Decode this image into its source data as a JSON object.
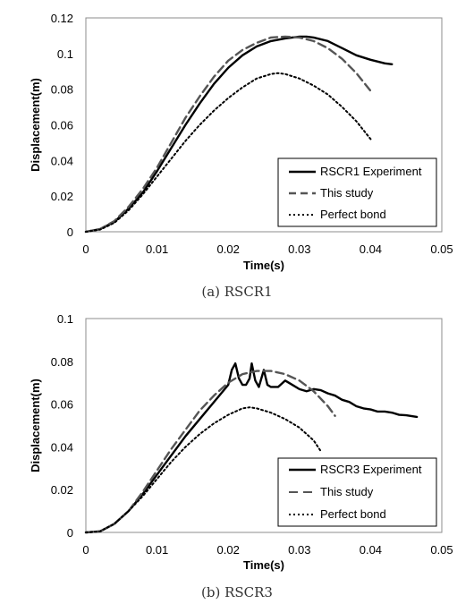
{
  "chart_data": [
    {
      "type": "line",
      "caption": "(a)  RSCR1",
      "xlabel": "Time(s)",
      "ylabel": "Displacement(m)",
      "xlim": [
        0,
        0.05
      ],
      "ylim": [
        0,
        0.12
      ],
      "xticks": [
        "0",
        "0.01",
        "0.02",
        "0.03",
        "0.04",
        "0.05"
      ],
      "yticks": [
        "0",
        "0.02",
        "0.04",
        "0.06",
        "0.08",
        "0.1",
        "0.12"
      ],
      "grid": false,
      "legend_position": "bottom-right",
      "series": [
        {
          "name": "RSCR1 Experiment",
          "style": "solid",
          "color": "#000000",
          "points": [
            [
              0,
              0
            ],
            [
              0.002,
              0.0015
            ],
            [
              0.004,
              0.0055
            ],
            [
              0.006,
              0.013
            ],
            [
              0.008,
              0.022
            ],
            [
              0.01,
              0.034
            ],
            [
              0.012,
              0.047
            ],
            [
              0.014,
              0.06
            ],
            [
              0.016,
              0.072
            ],
            [
              0.018,
              0.083
            ],
            [
              0.02,
              0.092
            ],
            [
              0.022,
              0.099
            ],
            [
              0.024,
              0.104
            ],
            [
              0.026,
              0.107
            ],
            [
              0.028,
              0.1085
            ],
            [
              0.03,
              0.1095
            ],
            [
              0.031,
              0.1095
            ],
            [
              0.032,
              0.109
            ],
            [
              0.034,
              0.107
            ],
            [
              0.036,
              0.103
            ],
            [
              0.038,
              0.099
            ],
            [
              0.04,
              0.0965
            ],
            [
              0.042,
              0.0945
            ],
            [
              0.043,
              0.094
            ]
          ]
        },
        {
          "name": "This study",
          "style": "dashed",
          "color": "#555555",
          "points": [
            [
              0,
              0
            ],
            [
              0.002,
              0.0015
            ],
            [
              0.004,
              0.006
            ],
            [
              0.006,
              0.014
            ],
            [
              0.008,
              0.024
            ],
            [
              0.01,
              0.036
            ],
            [
              0.012,
              0.05
            ],
            [
              0.014,
              0.064
            ],
            [
              0.016,
              0.076
            ],
            [
              0.018,
              0.087
            ],
            [
              0.02,
              0.096
            ],
            [
              0.022,
              0.102
            ],
            [
              0.024,
              0.106
            ],
            [
              0.026,
              0.109
            ],
            [
              0.028,
              0.1095
            ],
            [
              0.03,
              0.109
            ],
            [
              0.032,
              0.107
            ],
            [
              0.034,
              0.103
            ],
            [
              0.036,
              0.097
            ],
            [
              0.038,
              0.089
            ],
            [
              0.04,
              0.079
            ]
          ]
        },
        {
          "name": "Perfect bond",
          "style": "dotted",
          "color": "#000000",
          "points": [
            [
              0,
              0
            ],
            [
              0.002,
              0.0012
            ],
            [
              0.004,
              0.005
            ],
            [
              0.006,
              0.012
            ],
            [
              0.008,
              0.021
            ],
            [
              0.01,
              0.031
            ],
            [
              0.012,
              0.041
            ],
            [
              0.014,
              0.051
            ],
            [
              0.016,
              0.06
            ],
            [
              0.018,
              0.068
            ],
            [
              0.02,
              0.075
            ],
            [
              0.022,
              0.081
            ],
            [
              0.024,
              0.086
            ],
            [
              0.026,
              0.0885
            ],
            [
              0.027,
              0.089
            ],
            [
              0.028,
              0.0885
            ],
            [
              0.03,
              0.086
            ],
            [
              0.032,
              0.082
            ],
            [
              0.034,
              0.077
            ],
            [
              0.036,
              0.07
            ],
            [
              0.038,
              0.062
            ],
            [
              0.04,
              0.052
            ]
          ]
        }
      ]
    },
    {
      "type": "line",
      "caption": "(b)  RSCR3",
      "xlabel": "Time(s)",
      "ylabel": "Displacement(m)",
      "xlim": [
        0,
        0.05
      ],
      "ylim": [
        0,
        0.1
      ],
      "xticks": [
        "0",
        "0.01",
        "0.02",
        "0.03",
        "0.04",
        "0.05"
      ],
      "yticks": [
        "0",
        "0.02",
        "0.04",
        "0.06",
        "0.08",
        "0.1"
      ],
      "grid": false,
      "legend_position": "bottom-right",
      "series": [
        {
          "name": "RSCR3 Experiment",
          "style": "solid",
          "color": "#000000",
          "points": [
            [
              0,
              0
            ],
            [
              0.002,
              0.0005
            ],
            [
              0.004,
              0.004
            ],
            [
              0.006,
              0.01
            ],
            [
              0.008,
              0.018
            ],
            [
              0.01,
              0.027
            ],
            [
              0.012,
              0.036
            ],
            [
              0.014,
              0.045
            ],
            [
              0.016,
              0.053
            ],
            [
              0.018,
              0.061
            ],
            [
              0.02,
              0.069
            ],
            [
              0.0205,
              0.076
            ],
            [
              0.021,
              0.079
            ],
            [
              0.0215,
              0.072
            ],
            [
              0.022,
              0.069
            ],
            [
              0.0225,
              0.069
            ],
            [
              0.023,
              0.072
            ],
            [
              0.0233,
              0.079
            ],
            [
              0.0238,
              0.071
            ],
            [
              0.0243,
              0.068
            ],
            [
              0.025,
              0.076
            ],
            [
              0.0255,
              0.069
            ],
            [
              0.026,
              0.068
            ],
            [
              0.027,
              0.068
            ],
            [
              0.028,
              0.071
            ],
            [
              0.029,
              0.069
            ],
            [
              0.03,
              0.067
            ],
            [
              0.031,
              0.066
            ],
            [
              0.032,
              0.067
            ],
            [
              0.033,
              0.0665
            ],
            [
              0.034,
              0.065
            ],
            [
              0.035,
              0.064
            ],
            [
              0.036,
              0.062
            ],
            [
              0.037,
              0.061
            ],
            [
              0.038,
              0.059
            ],
            [
              0.039,
              0.058
            ],
            [
              0.04,
              0.0575
            ],
            [
              0.041,
              0.0565
            ],
            [
              0.042,
              0.0565
            ],
            [
              0.043,
              0.056
            ],
            [
              0.044,
              0.055
            ],
            [
              0.045,
              0.0548
            ],
            [
              0.0465,
              0.054
            ]
          ]
        },
        {
          "name": "This study",
          "style": "dashed",
          "color": "#555555",
          "points": [
            [
              0,
              0
            ],
            [
              0.002,
              0.0005
            ],
            [
              0.004,
              0.004
            ],
            [
              0.006,
              0.01
            ],
            [
              0.008,
              0.019
            ],
            [
              0.01,
              0.029
            ],
            [
              0.012,
              0.039
            ],
            [
              0.014,
              0.048
            ],
            [
              0.016,
              0.057
            ],
            [
              0.018,
              0.064
            ],
            [
              0.02,
              0.07
            ],
            [
              0.022,
              0.074
            ],
            [
              0.024,
              0.0755
            ],
            [
              0.026,
              0.0755
            ],
            [
              0.028,
              0.074
            ],
            [
              0.03,
              0.071
            ],
            [
              0.032,
              0.066
            ],
            [
              0.034,
              0.059
            ],
            [
              0.035,
              0.0545
            ]
          ]
        },
        {
          "name": "Perfect bond",
          "style": "dotted",
          "color": "#000000",
          "points": [
            [
              0,
              0
            ],
            [
              0.002,
              0.0005
            ],
            [
              0.004,
              0.004
            ],
            [
              0.006,
              0.01
            ],
            [
              0.008,
              0.017
            ],
            [
              0.01,
              0.025
            ],
            [
              0.012,
              0.033
            ],
            [
              0.014,
              0.04
            ],
            [
              0.016,
              0.046
            ],
            [
              0.018,
              0.051
            ],
            [
              0.02,
              0.055
            ],
            [
              0.022,
              0.058
            ],
            [
              0.023,
              0.0585
            ],
            [
              0.024,
              0.058
            ],
            [
              0.026,
              0.056
            ],
            [
              0.028,
              0.053
            ],
            [
              0.03,
              0.049
            ],
            [
              0.032,
              0.043
            ],
            [
              0.033,
              0.038
            ]
          ]
        }
      ]
    }
  ]
}
